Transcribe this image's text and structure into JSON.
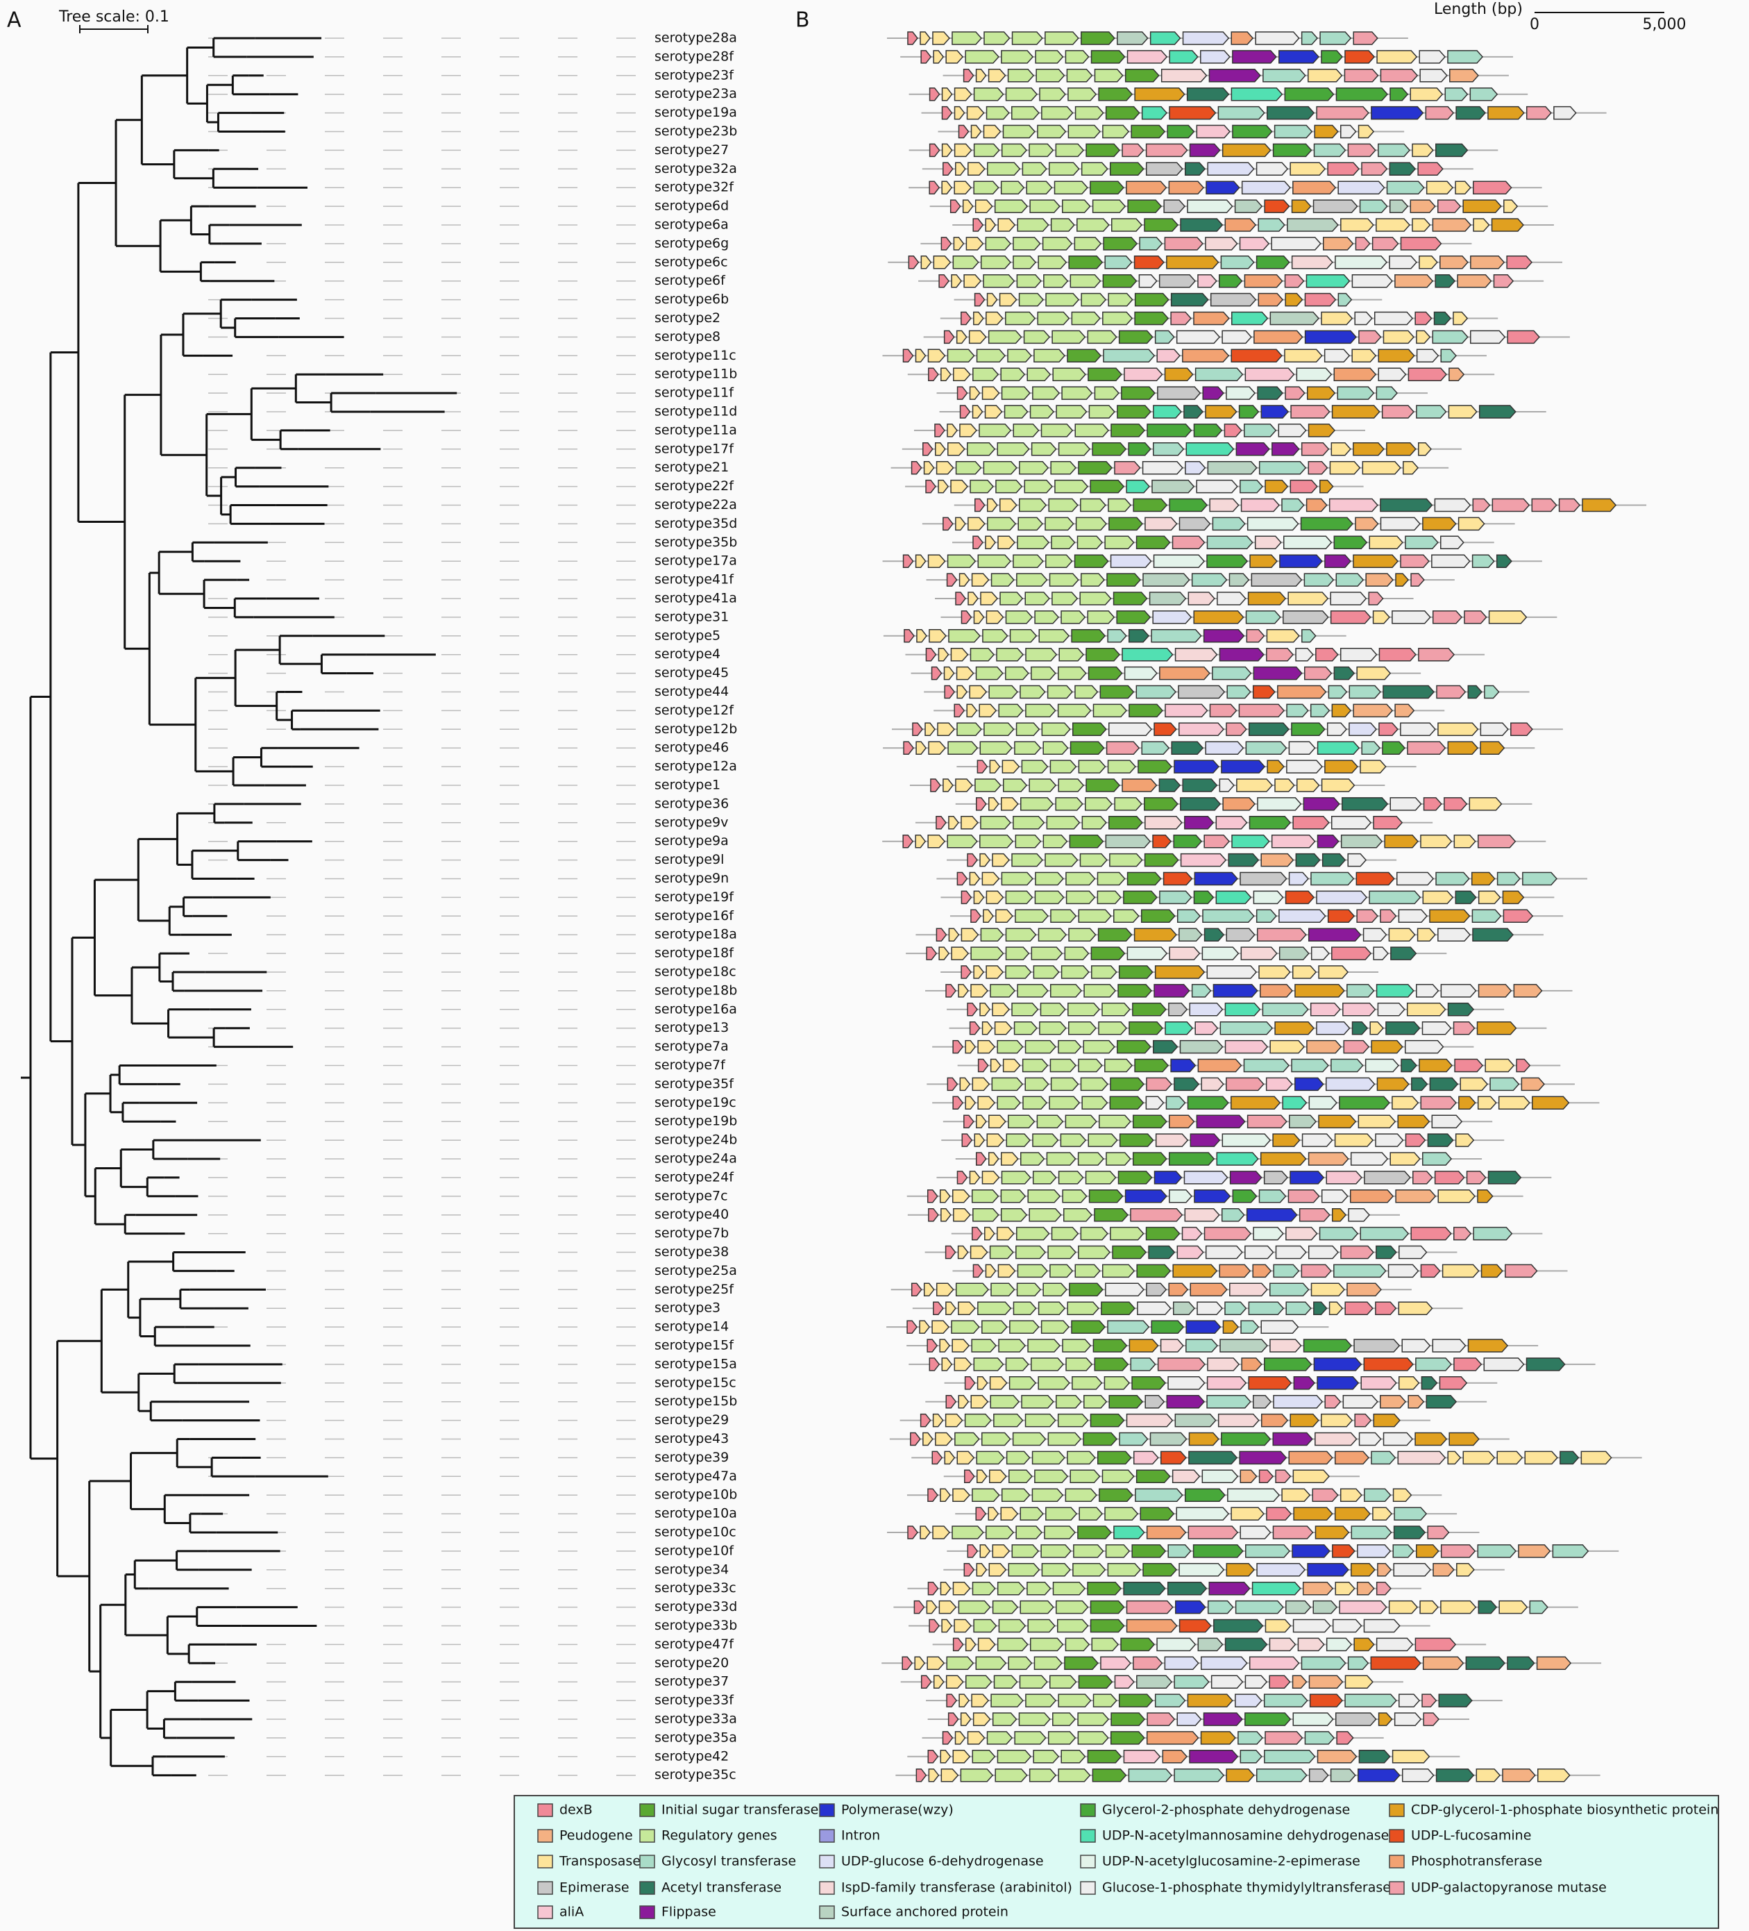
{
  "panel_labels": {
    "a": "A",
    "b": "B"
  },
  "tree": {
    "scale_label": "Tree scale: 0.1",
    "leaves": [
      "serotype28a",
      "serotype28f",
      "serotype23f",
      "serotype23a",
      "serotype19a",
      "serotype23b",
      "serotype27",
      "serotype32a",
      "serotype32f",
      "serotype6d",
      "serotype6a",
      "serotype6g",
      "serotype6c",
      "serotype6f",
      "serotype6b",
      "serotype2",
      "serotype8",
      "serotype11c",
      "serotype11b",
      "serotype11f",
      "serotype11d",
      "serotype11a",
      "serotype17f",
      "serotype21",
      "serotype22f",
      "serotype22a",
      "serotype35d",
      "serotype35b",
      "serotype17a",
      "serotype41f",
      "serotype41a",
      "serotype31",
      "serotype5",
      "serotype4",
      "serotype45",
      "serotype44",
      "serotype12f",
      "serotype12b",
      "serotype46",
      "serotype12a",
      "serotype1",
      "serotype36",
      "serotype9v",
      "serotype9a",
      "serotype9l",
      "serotype9n",
      "serotype19f",
      "serotype16f",
      "serotype18a",
      "serotype18f",
      "serotype18c",
      "serotype18b",
      "serotype16a",
      "serotype13",
      "serotype7a",
      "serotype7f",
      "serotype35f",
      "serotype19c",
      "serotype19b",
      "serotype24b",
      "serotype24a",
      "serotype24f",
      "serotype7c",
      "serotype40",
      "serotype7b",
      "serotype38",
      "serotype25a",
      "serotype25f",
      "serotype3",
      "serotype14",
      "serotype15f",
      "serotype15a",
      "serotype15c",
      "serotype15b",
      "serotype29",
      "serotype43",
      "serotype39",
      "serotype47a",
      "serotype10b",
      "serotype10a",
      "serotype10c",
      "serotype10f",
      "serotype34",
      "serotype33c",
      "serotype33d",
      "serotype33b",
      "serotype47f",
      "serotype20",
      "serotype37",
      "serotype33f",
      "serotype33a",
      "serotype35a",
      "serotype42",
      "serotype35c"
    ]
  },
  "gene_map": {
    "scale_title": "Length (bp)",
    "scale_start": "0",
    "scale_end": "5,000"
  },
  "legend": [
    {
      "label": "dexB",
      "color": "#f08a98"
    },
    {
      "label": "Peudogene",
      "color": "#f4b183"
    },
    {
      "label": "Transposase",
      "color": "#fde49a"
    },
    {
      "label": "Epimerase",
      "color": "#c8c8c8"
    },
    {
      "label": "aliA",
      "color": "#f7c6d2"
    },
    {
      "label": "Initial sugar transferase",
      "color": "#5aa832"
    },
    {
      "label": "Regulatory genes",
      "color": "#c6e89a"
    },
    {
      "label": "Glycosyl transferase",
      "color": "#a9dcc8"
    },
    {
      "label": "Acetyl transferase",
      "color": "#2f7a60"
    },
    {
      "label": "Flippase",
      "color": "#8b1a9a"
    },
    {
      "label": "Polymerase(wzy)",
      "color": "#2633d0"
    },
    {
      "label": "Intron",
      "color": "#9a9ae0"
    },
    {
      "label": "UDP-glucose 6-dehydrogenase",
      "color": "#dde0f5"
    },
    {
      "label": "IspD-family transferase (arabinitol)",
      "color": "#f5d8d8"
    },
    {
      "label": "Surface anchored protein",
      "color": "#b9d3c2"
    },
    {
      "label": "Glycerol-2-phosphate dehydrogenase",
      "color": "#48a83a"
    },
    {
      "label": "UDP-N-acetylmannosamine dehydrogenase",
      "color": "#52e0b2"
    },
    {
      "label": "UDP-N-acetylglucosamine-2-epimerase",
      "color": "#e3f3ea"
    },
    {
      "label": "Glucose-1-phosphate thymidylyltransferase",
      "color": "#eeeeee"
    },
    {
      "label": "CDP-glycerol-1-phosphate biosynthetic protein",
      "color": "#e0a020"
    },
    {
      "label": "UDP-L-fucosamine",
      "color": "#e85020"
    },
    {
      "label": "Phosphotransferase",
      "color": "#f2a272"
    },
    {
      "label": "UDP-galactopyranose mutase",
      "color": "#f0a0aa"
    }
  ]
}
